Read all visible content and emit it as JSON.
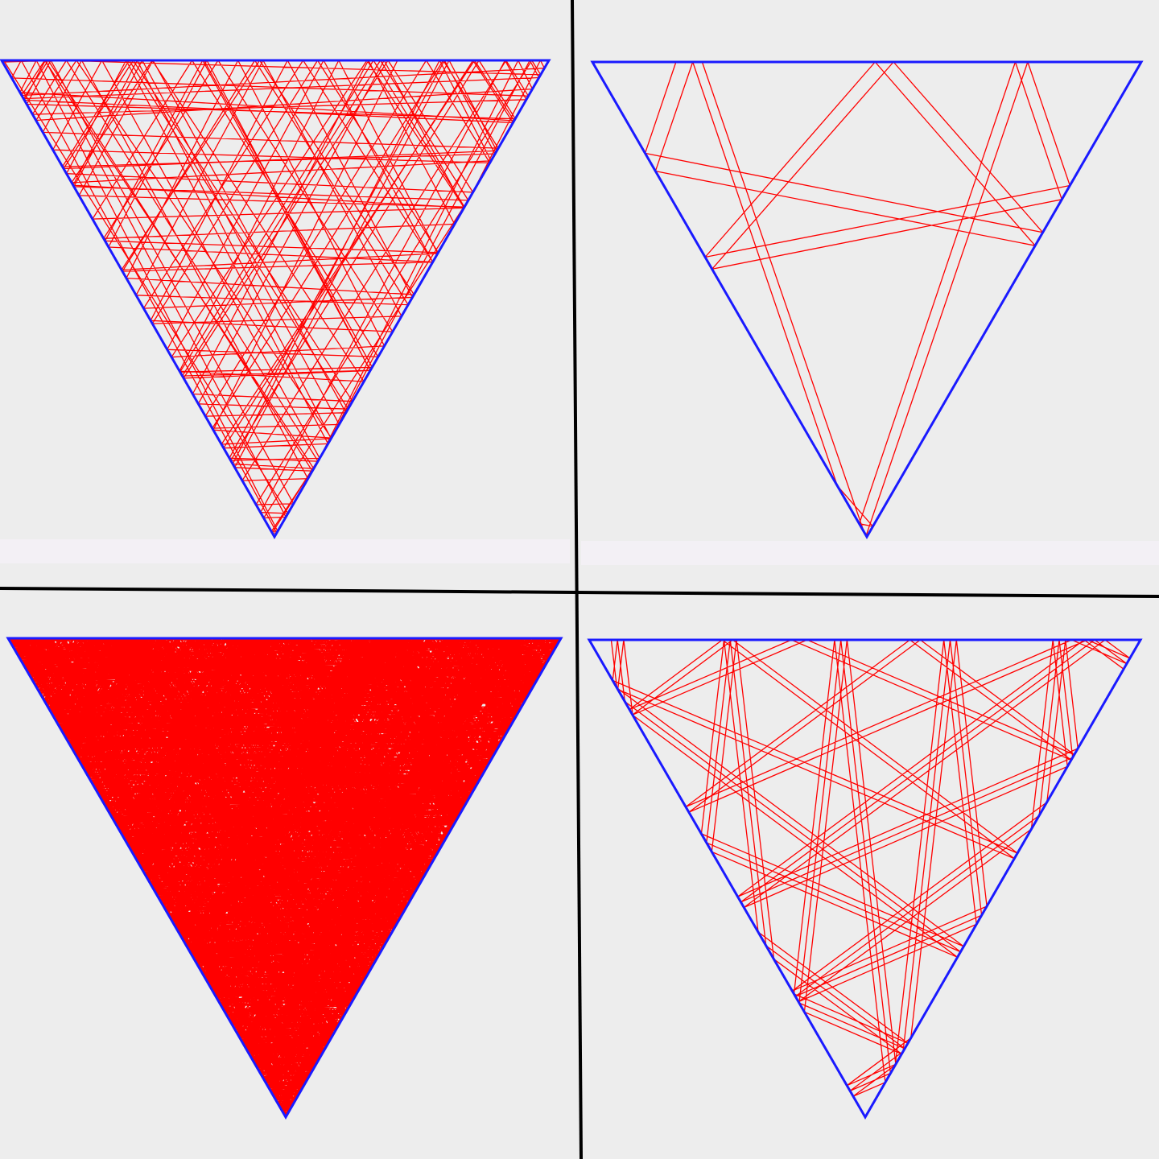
{
  "figure": {
    "background_color": "#ededed",
    "divider_color": "#000000",
    "triangle_color": "#1a1aff",
    "path_color": "#ff0000",
    "panels": [
      {
        "name": "top-left",
        "style": "dense-lattice",
        "path_segments": 160
      },
      {
        "name": "top-right",
        "style": "sparse-path",
        "path_segments": 20
      },
      {
        "name": "bottom-left",
        "style": "very-dense-filled",
        "path_segments": 2000
      },
      {
        "name": "bottom-right",
        "style": "medium-path",
        "path_segments": 80
      }
    ]
  }
}
